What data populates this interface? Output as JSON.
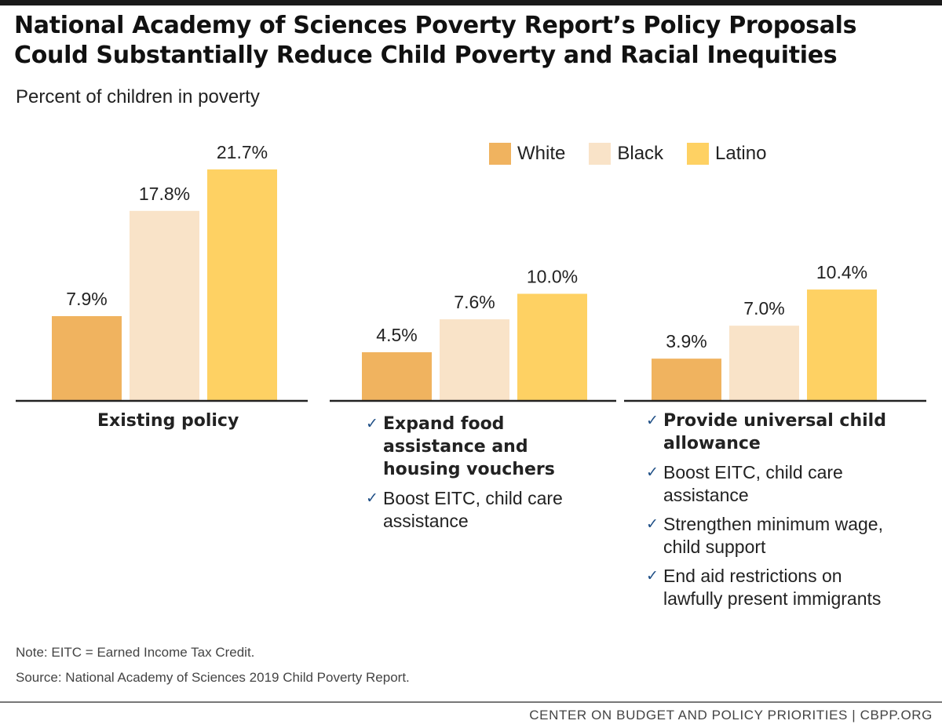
{
  "title_lines": [
    "National Academy of Sciences Poverty Report’s Policy Proposals",
    "Could Substantially Reduce Child Poverty and Racial Inequities"
  ],
  "subtitle": "Percent of children in poverty",
  "colors": {
    "White": "#f0b35f",
    "Black": "#f9e3c8",
    "Latino": "#fed163"
  },
  "chart_data": {
    "type": "bar",
    "title": "National Academy of Sciences Poverty Report’s Policy Proposals Could Substantially Reduce Child Poverty and Racial Inequities",
    "ylabel": "Percent of children in poverty",
    "ylim": [
      0,
      23
    ],
    "grid": false,
    "legend": "top-right",
    "categories": [
      "Existing policy",
      "Expand food assistance and housing vouchers",
      "Provide universal child allowance"
    ],
    "series": [
      {
        "name": "White",
        "values": [
          7.9,
          4.5,
          3.9
        ],
        "labels": [
          "7.9%",
          "4.5%",
          "3.9%"
        ]
      },
      {
        "name": "Black",
        "values": [
          17.8,
          7.6,
          7.0
        ],
        "labels": [
          "17.8%",
          "7.6%",
          "7.0%"
        ]
      },
      {
        "name": "Latino",
        "values": [
          21.7,
          10.0,
          10.4
        ],
        "labels": [
          "21.7%",
          "10.0%",
          "10.4%"
        ]
      }
    ]
  },
  "groups": [
    {
      "items": [
        {
          "text": "Existing policy",
          "bold": true,
          "check": false
        }
      ]
    },
    {
      "items": [
        {
          "text": "Expand food assistance and housing vouchers",
          "bold": true,
          "check": true
        },
        {
          "text": "Boost EITC, child care assistance",
          "bold": false,
          "check": true
        }
      ]
    },
    {
      "items": [
        {
          "text": "Provide universal child allowance",
          "bold": true,
          "check": true
        },
        {
          "text": "Boost EITC, child care assistance",
          "bold": false,
          "check": true
        },
        {
          "text": "Strengthen minimum wage, child support",
          "bold": false,
          "check": true
        },
        {
          "text": "End aid restrictions on lawfully present immigrants",
          "bold": false,
          "check": true
        }
      ]
    }
  ],
  "check_glyph": "✓",
  "notes": {
    "note": "Note: EITC = Earned Income Tax Credit.",
    "source": "Source: National Academy of Sciences 2019 Child Poverty Report."
  },
  "footer": "CENTER ON BUDGET AND POLICY PRIORITIES | CBPP.ORG"
}
